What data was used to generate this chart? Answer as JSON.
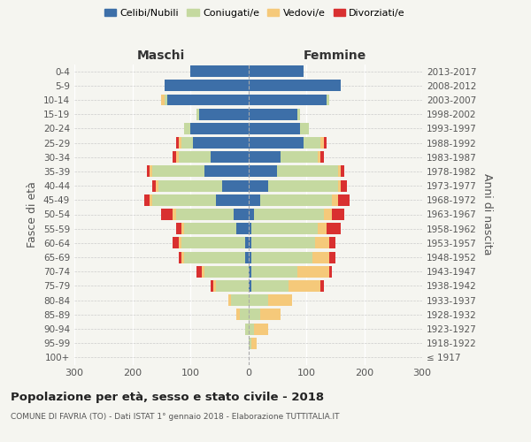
{
  "age_groups": [
    "100+",
    "95-99",
    "90-94",
    "85-89",
    "80-84",
    "75-79",
    "70-74",
    "65-69",
    "60-64",
    "55-59",
    "50-54",
    "45-49",
    "40-44",
    "35-39",
    "30-34",
    "25-29",
    "20-24",
    "15-19",
    "10-14",
    "5-9",
    "0-4"
  ],
  "birth_years": [
    "≤ 1917",
    "1918-1922",
    "1923-1927",
    "1928-1932",
    "1933-1937",
    "1938-1942",
    "1943-1947",
    "1948-1952",
    "1953-1957",
    "1958-1962",
    "1963-1967",
    "1968-1972",
    "1973-1977",
    "1978-1982",
    "1983-1987",
    "1988-1992",
    "1993-1997",
    "1998-2002",
    "2003-2007",
    "2008-2012",
    "2013-2017"
  ],
  "males": {
    "celibi": [
      0,
      0,
      0,
      0,
      0,
      0,
      0,
      5,
      5,
      20,
      25,
      55,
      45,
      75,
      65,
      95,
      100,
      85,
      140,
      145,
      100
    ],
    "coniugati": [
      0,
      0,
      5,
      15,
      30,
      55,
      75,
      105,
      110,
      90,
      100,
      110,
      110,
      90,
      55,
      20,
      10,
      5,
      5,
      0,
      0
    ],
    "vedovi": [
      0,
      0,
      0,
      5,
      5,
      5,
      5,
      5,
      5,
      5,
      5,
      5,
      5,
      5,
      5,
      5,
      0,
      0,
      5,
      0,
      0
    ],
    "divorziati": [
      0,
      0,
      0,
      0,
      0,
      5,
      10,
      5,
      10,
      10,
      20,
      10,
      5,
      5,
      5,
      5,
      0,
      0,
      0,
      0,
      0
    ]
  },
  "females": {
    "nubili": [
      0,
      0,
      0,
      0,
      0,
      5,
      5,
      5,
      5,
      5,
      10,
      20,
      35,
      50,
      55,
      95,
      90,
      85,
      135,
      160,
      95
    ],
    "coniugate": [
      0,
      5,
      10,
      20,
      35,
      65,
      80,
      105,
      110,
      115,
      120,
      125,
      120,
      105,
      65,
      30,
      15,
      5,
      5,
      0,
      0
    ],
    "vedove": [
      1,
      10,
      25,
      35,
      40,
      55,
      55,
      30,
      25,
      15,
      15,
      10,
      5,
      5,
      5,
      5,
      0,
      0,
      0,
      0,
      0
    ],
    "divorziate": [
      0,
      0,
      0,
      0,
      0,
      5,
      5,
      10,
      10,
      25,
      20,
      20,
      10,
      5,
      5,
      5,
      0,
      0,
      0,
      0,
      0
    ]
  },
  "colors": {
    "celibi": "#3d6fa8",
    "coniugati": "#c5d9a0",
    "vedovi": "#f5c97a",
    "divorziati": "#d93030"
  },
  "xlim": 300,
  "title": "Popolazione per età, sesso e stato civile - 2018",
  "subtitle": "COMUNE DI FAVRIA (TO) - Dati ISTAT 1° gennaio 2018 - Elaborazione TUTTITALIA.IT",
  "ylabel_left": "Fasce di età",
  "ylabel_right": "Anni di nascita",
  "xlabel_left": "Maschi",
  "xlabel_right": "Femmine",
  "legend_labels": [
    "Celibi/Nubili",
    "Coniugati/e",
    "Vedovi/e",
    "Divorziati/e"
  ],
  "bg_color": "#f5f5f0"
}
